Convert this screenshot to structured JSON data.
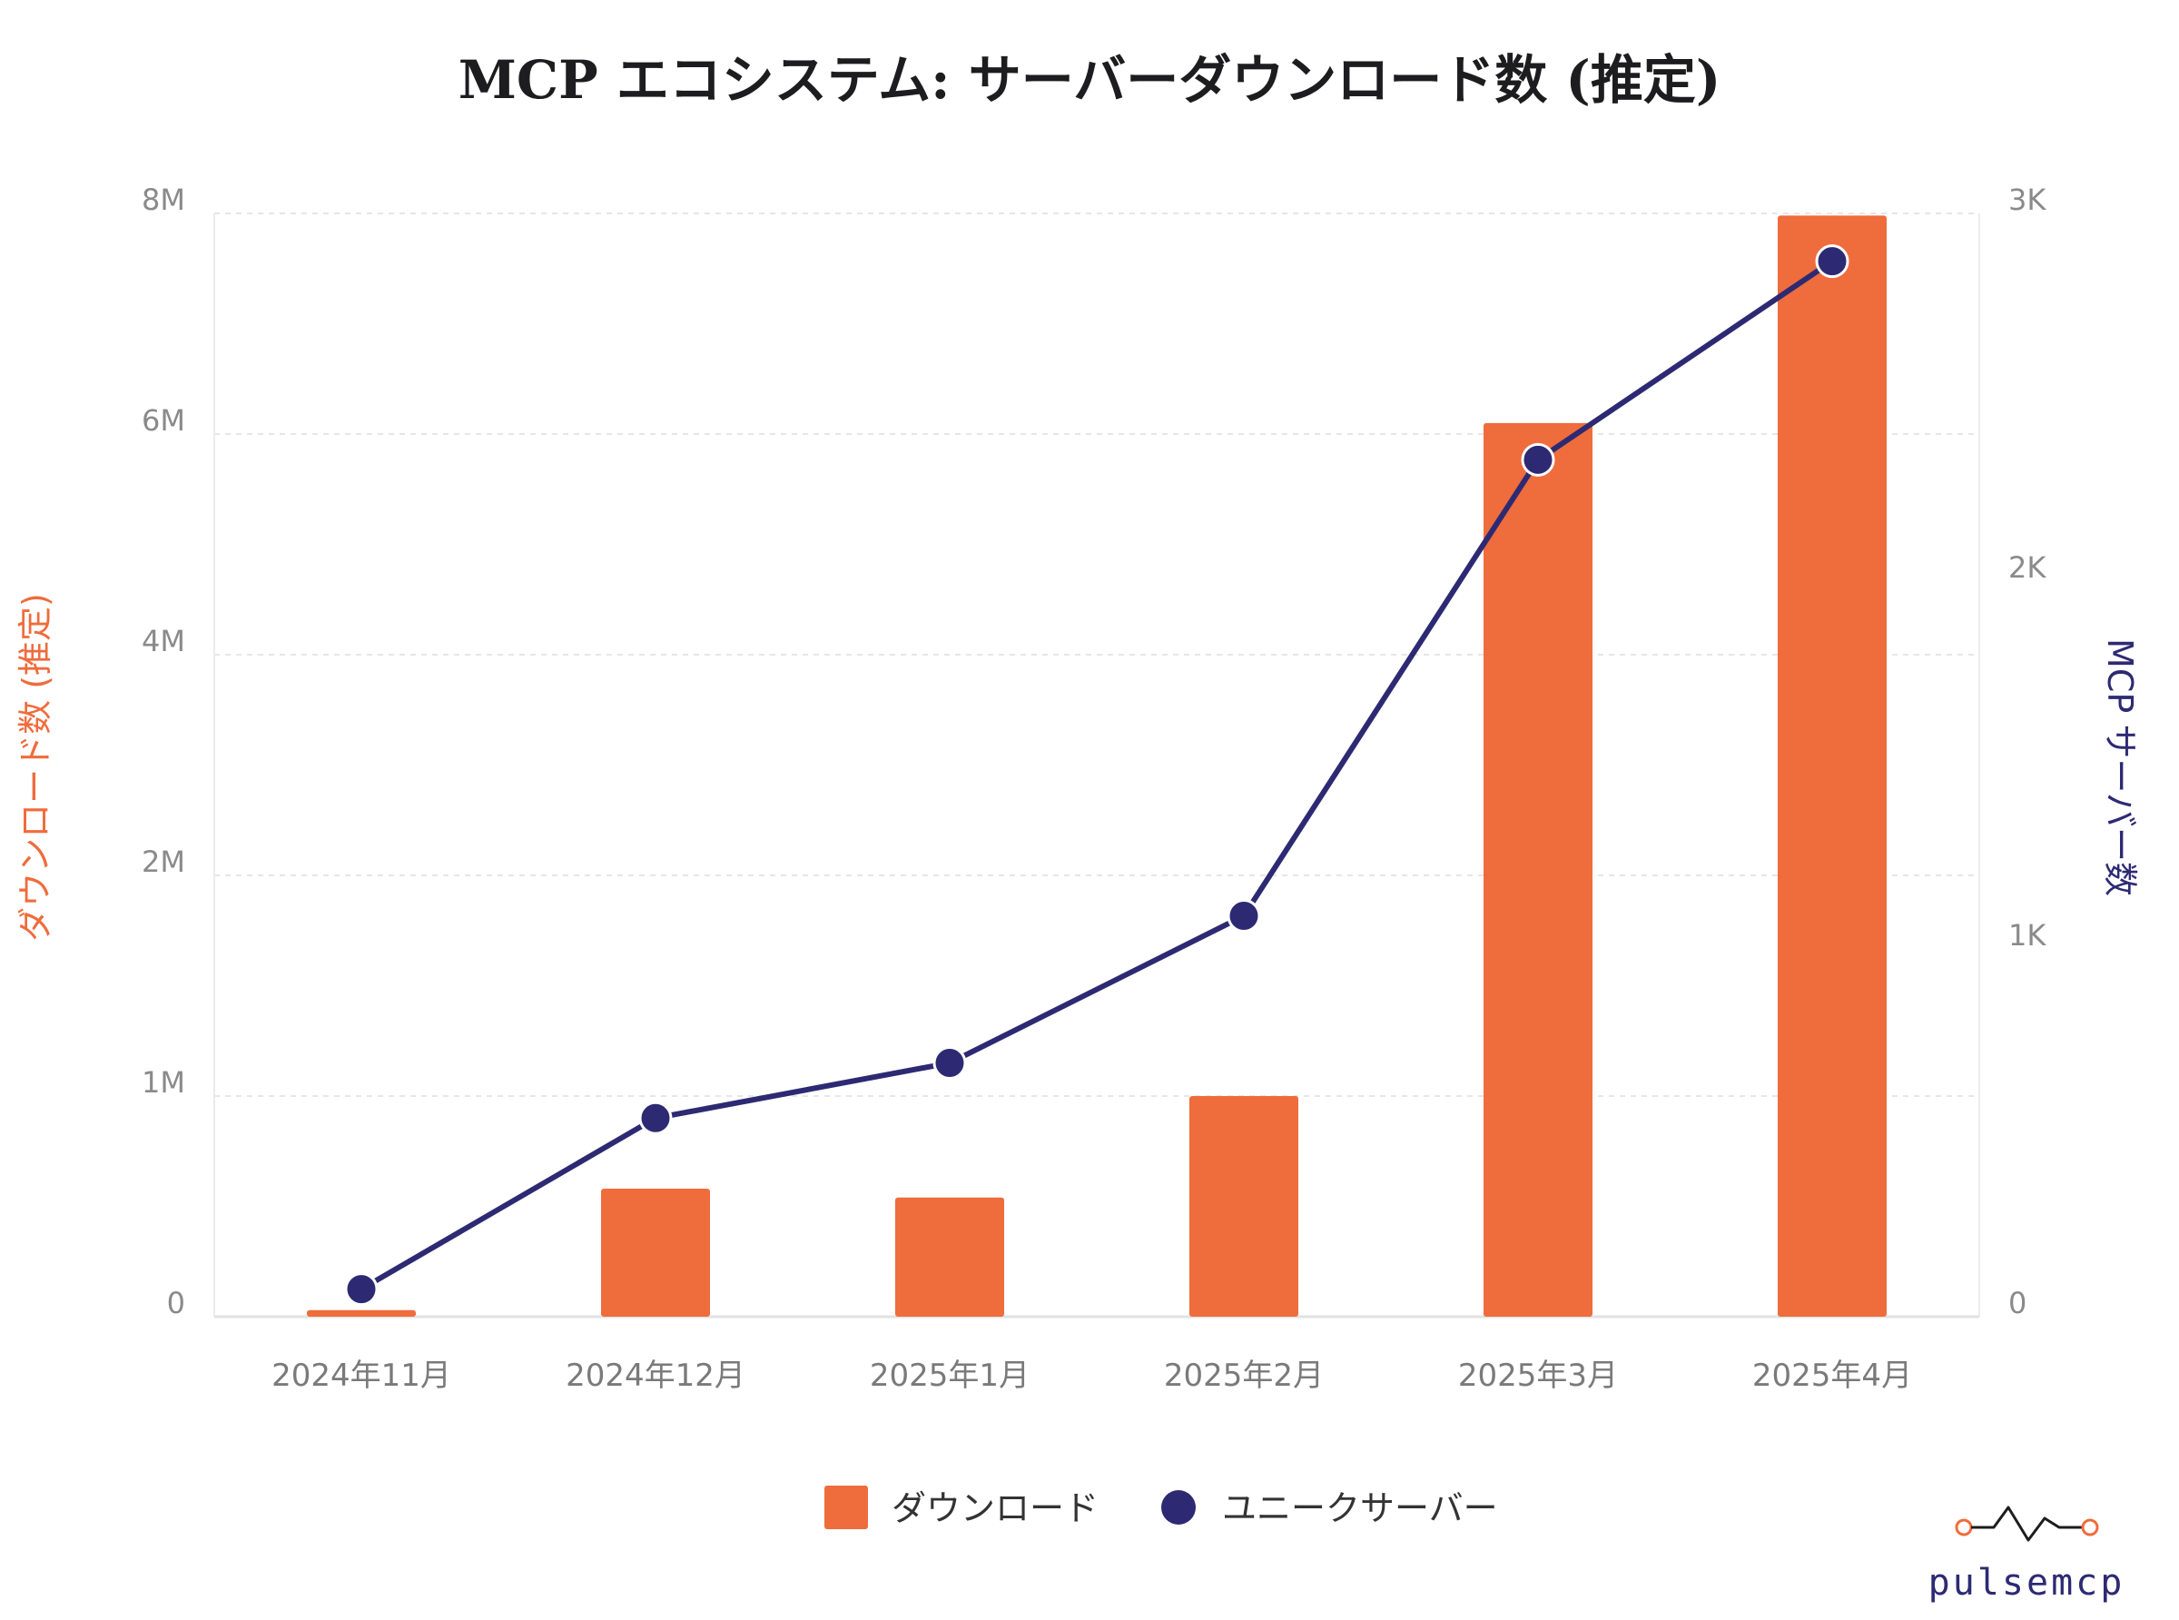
{
  "chart_data": {
    "type": "bar",
    "title": "MCP エコシステム: サーバーダウンロード数 (推定)",
    "categories": [
      "2024年11月",
      "2024年12月",
      "2025年1月",
      "2025年2月",
      "2025年3月",
      "2025年4月"
    ],
    "series": [
      {
        "name": "ダウンロード",
        "type": "bar",
        "axis": "left",
        "color": "#ef6c3c",
        "values": [
          30000,
          580000,
          540000,
          1000000,
          6100000,
          7980000
        ]
      },
      {
        "name": "ユニークサーバー",
        "type": "line",
        "axis": "right",
        "color": "#2d2a73",
        "values": [
          75,
          540,
          690,
          1090,
          2330,
          2870
        ]
      }
    ],
    "y_left": {
      "label": "ダウンロード数 (推定)",
      "ticks": [
        {
          "value": 0,
          "label": "0"
        },
        {
          "value": 1000000,
          "label": "1M"
        },
        {
          "value": 2000000,
          "label": "2M"
        },
        {
          "value": 4000000,
          "label": "4M"
        },
        {
          "value": 6000000,
          "label": "6M"
        },
        {
          "value": 8000000,
          "label": "8M"
        }
      ],
      "range": [
        0,
        8000000
      ]
    },
    "y_right": {
      "label": "MCP サーバー数",
      "ticks": [
        {
          "value": 0,
          "label": "0"
        },
        {
          "value": 1000,
          "label": "1K"
        },
        {
          "value": 2000,
          "label": "2K"
        },
        {
          "value": 3000,
          "label": "3K"
        }
      ],
      "range": [
        0,
        3000
      ]
    },
    "grid": true,
    "legend_position": "bottom"
  },
  "logo": {
    "text": "pulsemcp"
  }
}
